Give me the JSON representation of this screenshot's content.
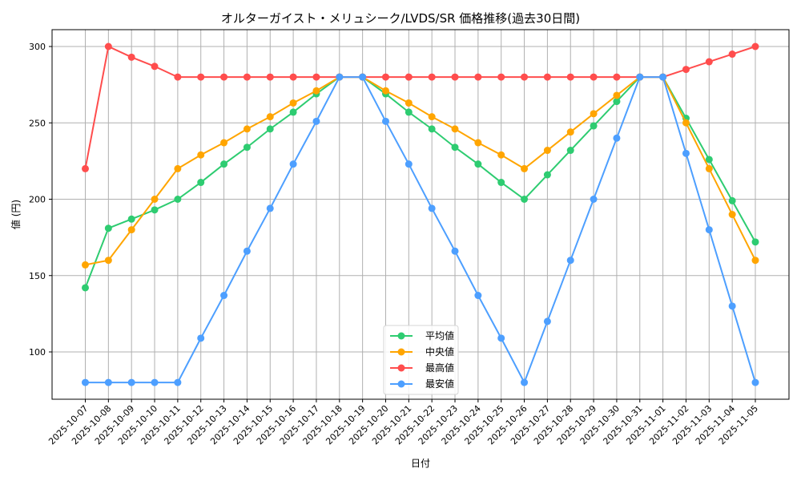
{
  "chart_data": {
    "type": "line",
    "title": "オルターガイスト・メリュシーク/LVDS/SR 価格推移(過去30日間)",
    "xlabel": "日付",
    "ylabel": "値 (円)",
    "ylim": [
      69,
      311
    ],
    "yticks": [
      100,
      150,
      200,
      250,
      300
    ],
    "grid": true,
    "legend_position": "lower center",
    "x": [
      "2025-10-07",
      "2025-10-08",
      "2025-10-09",
      "2025-10-10",
      "2025-10-11",
      "2025-10-12",
      "2025-10-13",
      "2025-10-14",
      "2025-10-15",
      "2025-10-16",
      "2025-10-17",
      "2025-10-18",
      "2025-10-19",
      "2025-10-20",
      "2025-10-21",
      "2025-10-22",
      "2025-10-23",
      "2025-10-24",
      "2025-10-25",
      "2025-10-26",
      "2025-10-27",
      "2025-10-28",
      "2025-10-29",
      "2025-10-30",
      "2025-10-31",
      "2025-11-01",
      "2025-11-02",
      "2025-11-03",
      "2025-11-04",
      "2025-11-05"
    ],
    "series": [
      {
        "name": "平均値",
        "color": "#2ecc71",
        "values": [
          142,
          181,
          187,
          193,
          200,
          211,
          223,
          234,
          246,
          257,
          269,
          280,
          280,
          269,
          257,
          246,
          234,
          223,
          211,
          200,
          216,
          232,
          248,
          264,
          280,
          280,
          253,
          226,
          199,
          172
        ]
      },
      {
        "name": "中央値",
        "color": "#ffa500",
        "values": [
          157,
          160,
          180,
          200,
          220,
          229,
          237,
          246,
          254,
          263,
          271,
          280,
          280,
          271,
          263,
          254,
          246,
          237,
          229,
          220,
          232,
          244,
          256,
          268,
          280,
          280,
          250,
          220,
          190,
          160
        ]
      },
      {
        "name": "最高値",
        "color": "#ff4d4d",
        "values": [
          220,
          300,
          293,
          287,
          280,
          280,
          280,
          280,
          280,
          280,
          280,
          280,
          280,
          280,
          280,
          280,
          280,
          280,
          280,
          280,
          280,
          280,
          280,
          280,
          280,
          280,
          285,
          290,
          295,
          300
        ]
      },
      {
        "name": "最安値",
        "color": "#4d9fff",
        "values": [
          80,
          80,
          80,
          80,
          80,
          109,
          137,
          166,
          194,
          223,
          251,
          280,
          280,
          251,
          223,
          194,
          166,
          137,
          109,
          80,
          120,
          160,
          200,
          240,
          280,
          280,
          230,
          180,
          130,
          80
        ]
      }
    ]
  }
}
